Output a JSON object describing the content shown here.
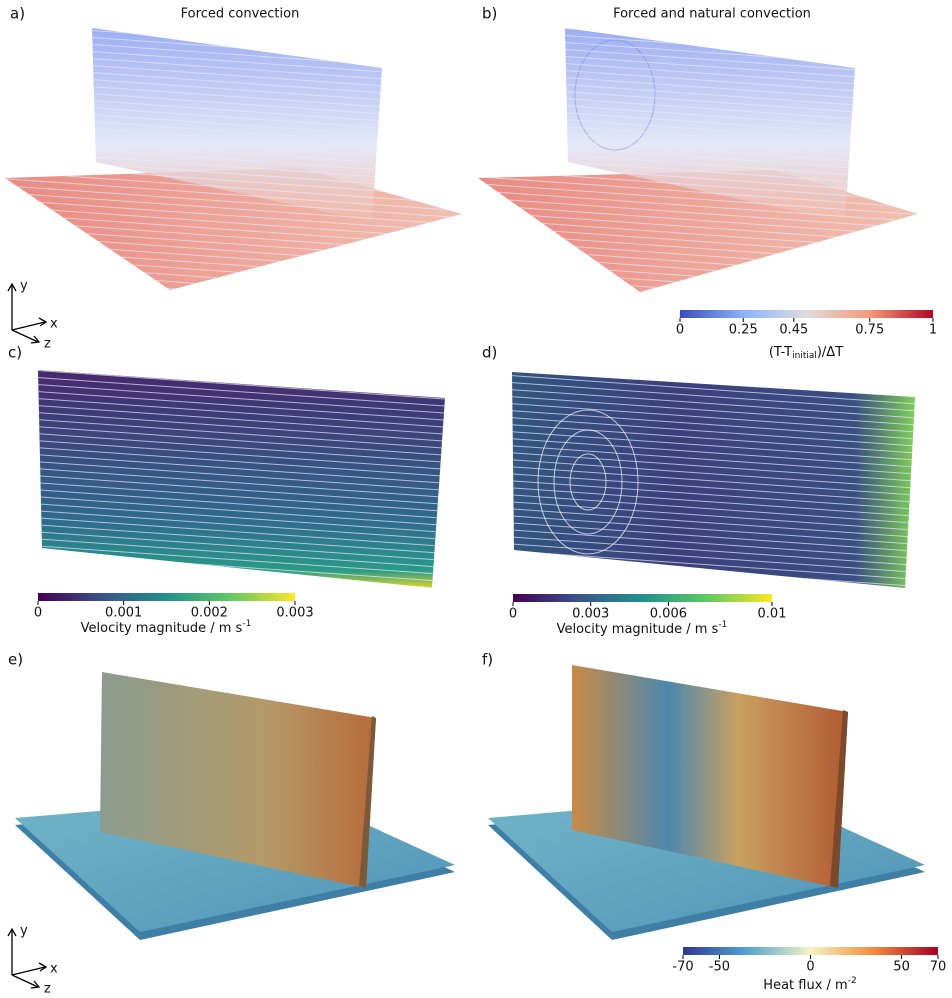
{
  "panels": [
    {
      "label": "a)",
      "title": "Forced convection"
    },
    {
      "label": "b)",
      "title": "Forced and natural convection"
    },
    {
      "label": "c)"
    },
    {
      "label": "d)"
    },
    {
      "label": "e)"
    },
    {
      "label": "f)"
    }
  ],
  "axes_triads": [
    {
      "y": "y",
      "x": "x",
      "z": "z"
    },
    {
      "y": "y",
      "x": "x",
      "z": "z"
    }
  ],
  "colorbars": [
    {
      "label_parts": [
        "(T-T",
        "initial",
        ")/ΔT"
      ],
      "lim": [
        0,
        1
      ],
      "ticks": [
        0,
        0.25,
        0.45,
        0.75,
        1
      ]
    },
    {
      "label_parts": [
        "Velocity magnitude / m s",
        "-1"
      ],
      "lim": [
        0,
        0.003
      ],
      "ticks": [
        0,
        0.001,
        0.002,
        0.003
      ]
    },
    {
      "label_parts": [
        "Velocity magnitude / m s",
        "-1"
      ],
      "lim": [
        0,
        0.01
      ],
      "ticks": [
        0,
        0.003,
        0.006,
        0.01
      ]
    },
    {
      "label_parts": [
        "Heat flux / m",
        "-2"
      ],
      "lim": [
        -70,
        70
      ],
      "ticks": [
        -70,
        -50,
        0,
        50,
        70
      ]
    }
  ]
}
